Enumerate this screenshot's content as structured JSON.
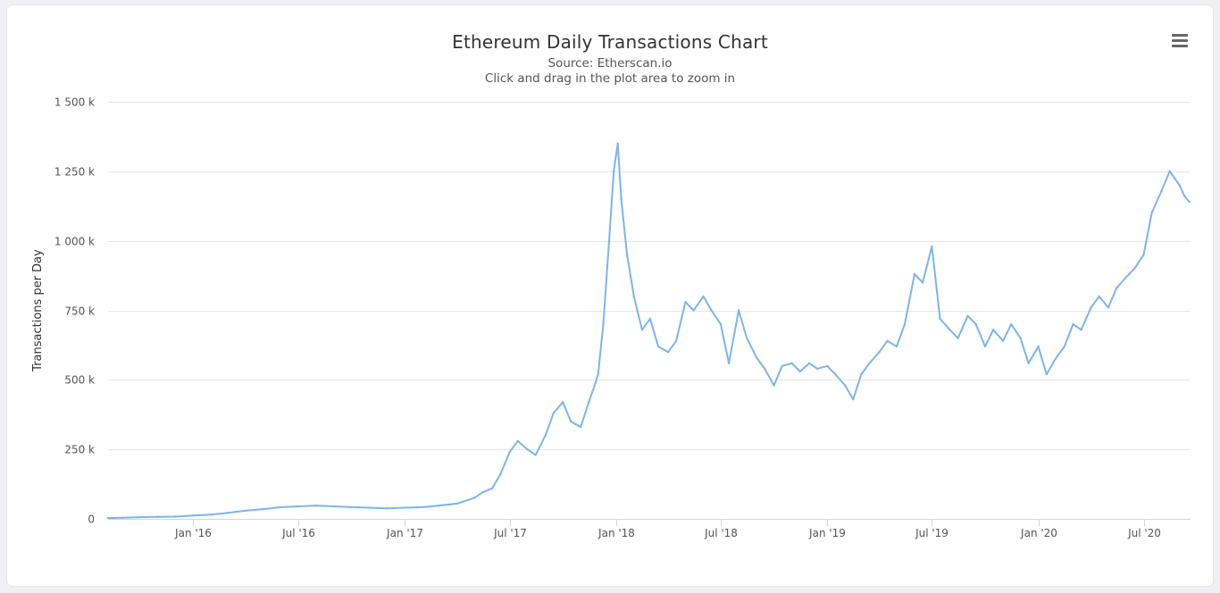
{
  "chart_data": {
    "type": "line",
    "title": "Ethereum Daily Transactions Chart",
    "subtitle": "Source: Etherscan.io",
    "hint": "Click and drag in the plot area to zoom in",
    "xlabel": "",
    "ylabel": "Transactions per Day",
    "ylim": [
      0,
      1500000
    ],
    "xlim": [
      "2015-08-07",
      "2020-09-20"
    ],
    "y_ticks": [
      {
        "value": 0,
        "label": "0"
      },
      {
        "value": 250000,
        "label": "250 k"
      },
      {
        "value": 500000,
        "label": "500 k"
      },
      {
        "value": 750000,
        "label": "750 k"
      },
      {
        "value": 1000000,
        "label": "1 000 k"
      },
      {
        "value": 1250000,
        "label": "1 250 k"
      },
      {
        "value": 1500000,
        "label": "1 500 k"
      }
    ],
    "x_ticks": [
      {
        "date": "2016-01-01",
        "label": "Jan '16"
      },
      {
        "date": "2016-07-01",
        "label": "Jul '16"
      },
      {
        "date": "2017-01-01",
        "label": "Jan '17"
      },
      {
        "date": "2017-07-01",
        "label": "Jul '17"
      },
      {
        "date": "2018-01-01",
        "label": "Jan '18"
      },
      {
        "date": "2018-07-01",
        "label": "Jul '18"
      },
      {
        "date": "2019-01-01",
        "label": "Jan '19"
      },
      {
        "date": "2019-07-01",
        "label": "Jul '19"
      },
      {
        "date": "2020-01-01",
        "label": "Jan '20"
      },
      {
        "date": "2020-07-01",
        "label": "Jul '20"
      }
    ],
    "grid": true,
    "legend": "none",
    "line_color": "#7cb5ec",
    "series": [
      {
        "x": [
          "2015-08-07",
          "2015-09-01",
          "2015-10-01",
          "2015-11-01",
          "2015-12-01",
          "2016-01-01",
          "2016-02-01",
          "2016-03-01",
          "2016-04-01",
          "2016-05-01",
          "2016-06-01",
          "2016-07-01",
          "2016-08-01",
          "2016-09-01",
          "2016-10-01",
          "2016-11-01",
          "2016-12-01",
          "2017-01-01",
          "2017-02-01",
          "2017-03-01",
          "2017-04-01",
          "2017-05-01",
          "2017-05-15",
          "2017-06-01",
          "2017-06-15",
          "2017-07-01",
          "2017-07-15",
          "2017-08-01",
          "2017-08-15",
          "2017-09-01",
          "2017-09-15",
          "2017-10-01",
          "2017-10-15",
          "2017-11-01",
          "2017-11-15",
          "2017-11-25",
          "2017-12-01",
          "2017-12-10",
          "2017-12-20",
          "2017-12-28",
          "2018-01-04",
          "2018-01-10",
          "2018-01-20",
          "2018-02-01",
          "2018-02-15",
          "2018-03-01",
          "2018-03-15",
          "2018-04-01",
          "2018-04-15",
          "2018-05-01",
          "2018-05-15",
          "2018-06-01",
          "2018-06-15",
          "2018-07-01",
          "2018-07-15",
          "2018-08-01",
          "2018-08-15",
          "2018-09-01",
          "2018-09-15",
          "2018-10-01",
          "2018-10-15",
          "2018-11-01",
          "2018-11-15",
          "2018-12-01",
          "2018-12-15",
          "2019-01-01",
          "2019-01-15",
          "2019-02-01",
          "2019-02-15",
          "2019-03-01",
          "2019-03-15",
          "2019-04-01",
          "2019-04-15",
          "2019-05-01",
          "2019-05-15",
          "2019-06-01",
          "2019-06-15",
          "2019-07-01",
          "2019-07-15",
          "2019-08-01",
          "2019-08-15",
          "2019-09-01",
          "2019-09-15",
          "2019-10-01",
          "2019-10-15",
          "2019-11-01",
          "2019-11-15",
          "2019-12-01",
          "2019-12-15",
          "2020-01-01",
          "2020-01-15",
          "2020-02-01",
          "2020-02-15",
          "2020-03-01",
          "2020-03-15",
          "2020-04-01",
          "2020-04-15",
          "2020-05-01",
          "2020-05-15",
          "2020-06-01",
          "2020-06-15",
          "2020-07-01",
          "2020-07-15",
          "2020-08-01",
          "2020-08-15",
          "2020-09-01",
          "2020-09-10",
          "2020-09-18"
        ],
        "y": [
          3000,
          4000,
          6000,
          7000,
          8000,
          12000,
          15000,
          22000,
          30000,
          35000,
          42000,
          45000,
          48000,
          45000,
          42000,
          40000,
          38000,
          40000,
          42000,
          48000,
          55000,
          75000,
          95000,
          110000,
          160000,
          240000,
          280000,
          250000,
          230000,
          300000,
          380000,
          420000,
          350000,
          330000,
          420000,
          480000,
          520000,
          700000,
          1000000,
          1250000,
          1350000,
          1150000,
          950000,
          800000,
          680000,
          720000,
          620000,
          600000,
          640000,
          780000,
          750000,
          800000,
          750000,
          700000,
          560000,
          750000,
          650000,
          580000,
          540000,
          480000,
          550000,
          560000,
          530000,
          560000,
          540000,
          550000,
          520000,
          480000,
          430000,
          520000,
          560000,
          600000,
          640000,
          620000,
          700000,
          880000,
          850000,
          980000,
          720000,
          680000,
          650000,
          730000,
          700000,
          620000,
          680000,
          640000,
          700000,
          650000,
          560000,
          620000,
          520000,
          580000,
          620000,
          700000,
          680000,
          760000,
          800000,
          760000,
          830000,
          870000,
          900000,
          950000,
          1100000,
          1180000,
          1250000,
          1200000,
          1160000,
          1140000
        ]
      }
    ]
  }
}
